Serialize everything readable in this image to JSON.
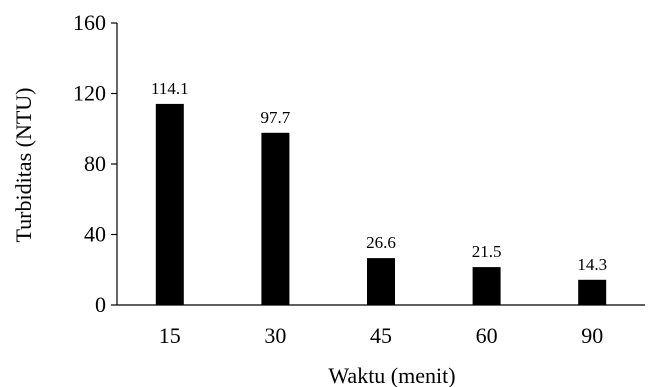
{
  "chart_data": {
    "type": "bar",
    "categories": [
      "15",
      "30",
      "45",
      "60",
      "90"
    ],
    "values": [
      114.1,
      97.7,
      26.6,
      21.5,
      14.3
    ],
    "data_labels": [
      "114.1",
      "97.7",
      "26.6",
      "21.5",
      "14.3"
    ],
    "xlabel": "Waktu (menit)",
    "ylabel": "Turbiditas (NTU)",
    "ylim": [
      0,
      160
    ],
    "yticks": [
      0,
      40,
      80,
      120,
      160
    ],
    "grid": false,
    "legend": "none",
    "bar_color": "#000000"
  }
}
